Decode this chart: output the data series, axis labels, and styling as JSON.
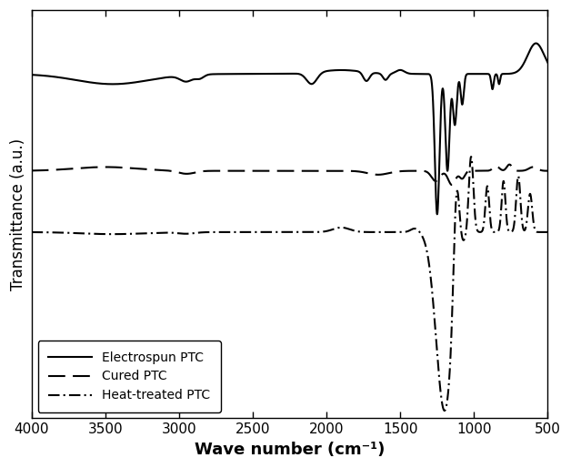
{
  "ylabel": "Transmittance (a.u.)",
  "xlabel_display": "Wave number (cm⁻¹)",
  "xmin": 4000,
  "xmax": 500,
  "background_color": "#ffffff",
  "line_color": "#000000",
  "legend_labels": [
    "Electrospun PTC",
    "Cured PTC",
    "Heat-treated PTC"
  ],
  "legend_linestyles": [
    "-",
    "--",
    "-."
  ],
  "xticks": [
    4000,
    3500,
    3000,
    2500,
    2000,
    1500,
    1000,
    500
  ],
  "xtick_labels": [
    "4000",
    "3500",
    "3000",
    "2500",
    "2000",
    "1500",
    "1000",
    "500"
  ],
  "electrospun_base": 0.8,
  "cured_base": 0.42,
  "heat_treated_base": 0.18,
  "ylim_min": -0.55,
  "ylim_max": 1.05
}
